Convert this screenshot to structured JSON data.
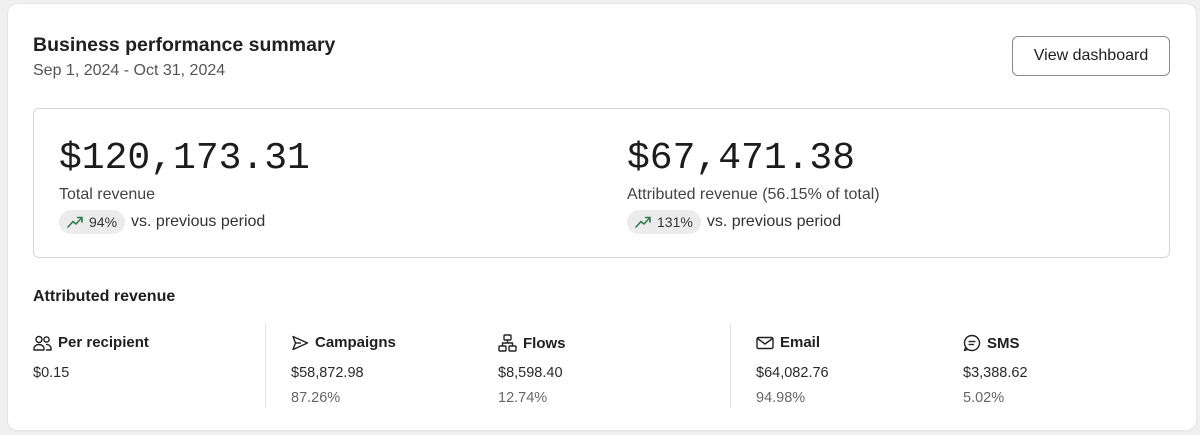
{
  "header": {
    "title": "Business performance summary",
    "date_range": "Sep 1, 2024 - Oct 31, 2024",
    "button_label": "View dashboard"
  },
  "summary": {
    "total": {
      "value": "$120,173.31",
      "label": "Total revenue",
      "trend_pct": "94%",
      "trend_text": "vs. previous period",
      "trend_icon": "trending-up-icon"
    },
    "attributed": {
      "value": "$67,471.38",
      "label": "Attributed revenue (56.15% of total)",
      "trend_pct": "131%",
      "trend_text": "vs. previous period",
      "trend_icon": "trending-up-icon"
    }
  },
  "attributed_section": {
    "title": "Attributed revenue",
    "columns": [
      {
        "icon": "people-icon",
        "label": "Per recipient",
        "value": "$0.15",
        "pct": ""
      },
      {
        "icon": "send-icon",
        "label": "Campaigns",
        "value": "$58,872.98",
        "pct": "87.26%"
      },
      {
        "icon": "flow-icon",
        "label": "Flows",
        "value": "$8,598.40",
        "pct": "12.74%"
      },
      {
        "icon": "mail-icon",
        "label": "Email",
        "value": "$64,082.76",
        "pct": "94.98%"
      },
      {
        "icon": "chat-icon",
        "label": "SMS",
        "value": "$3,388.62",
        "pct": "5.02%"
      }
    ]
  },
  "colors": {
    "trend_up": "#2e7d4f",
    "pill_bg": "#ececec"
  }
}
